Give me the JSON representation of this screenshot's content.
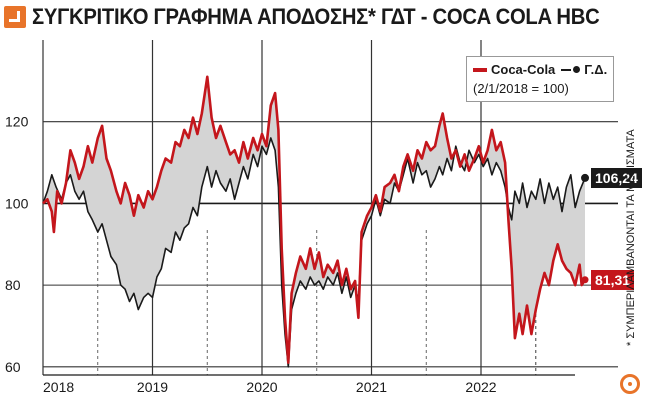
{
  "title": "ΣΥΓΚΡΙΤΙΚΟ ΓΡΑΦΗΜΑ ΑΠΟΔΟΣΗΣ* ΓΔΤ - COCA COLA HBC",
  "side_note": "* ΣΥΜΠΕΡΙΛΑΜΒΑΝΟΝΤΑΙ ΤΑ ΜΕΡΙΣΜΑΤΑ",
  "colors": {
    "coca_cola": "#c4161c",
    "gd": "#1a1a1a",
    "fill": "#d4d4d4",
    "accent": "#e8742a"
  },
  "chart_data": {
    "type": "line",
    "legend": {
      "series_a": "Coca-Cola",
      "series_b": "Γ.Δ.",
      "note": "(2/1/2018 = 100)",
      "placement": "top-right"
    },
    "x_ticks": [
      "2018",
      "2019",
      "2020",
      "2021",
      "2022"
    ],
    "y_ticks": [
      "60",
      "80",
      "100",
      "120"
    ],
    "ylim": [
      58,
      140
    ],
    "xlim": [
      2018.0,
      2022.95
    ],
    "grid": "horizontal",
    "end_labels": {
      "coca_cola": "81,31",
      "gd": "106,24"
    },
    "series": [
      {
        "name": "Coca-Cola",
        "points": [
          [
            2018.0,
            100
          ],
          [
            2018.04,
            101
          ],
          [
            2018.08,
            98
          ],
          [
            2018.1,
            93
          ],
          [
            2018.13,
            103
          ],
          [
            2018.17,
            100
          ],
          [
            2018.21,
            105
          ],
          [
            2018.25,
            113
          ],
          [
            2018.29,
            110
          ],
          [
            2018.33,
            106
          ],
          [
            2018.37,
            109
          ],
          [
            2018.41,
            114
          ],
          [
            2018.45,
            110
          ],
          [
            2018.5,
            116
          ],
          [
            2018.54,
            119
          ],
          [
            2018.58,
            111
          ],
          [
            2018.62,
            108
          ],
          [
            2018.67,
            103
          ],
          [
            2018.71,
            100
          ],
          [
            2018.75,
            105
          ],
          [
            2018.79,
            102
          ],
          [
            2018.83,
            97
          ],
          [
            2018.87,
            102
          ],
          [
            2018.92,
            99
          ],
          [
            2018.96,
            103
          ],
          [
            2019.0,
            101
          ],
          [
            2019.04,
            104
          ],
          [
            2019.08,
            108
          ],
          [
            2019.12,
            111
          ],
          [
            2019.17,
            110
          ],
          [
            2019.21,
            115
          ],
          [
            2019.25,
            114
          ],
          [
            2019.29,
            118
          ],
          [
            2019.33,
            116
          ],
          [
            2019.37,
            121
          ],
          [
            2019.41,
            117
          ],
          [
            2019.45,
            122
          ],
          [
            2019.5,
            131
          ],
          [
            2019.54,
            121
          ],
          [
            2019.58,
            116
          ],
          [
            2019.62,
            119
          ],
          [
            2019.67,
            115
          ],
          [
            2019.71,
            112
          ],
          [
            2019.75,
            113
          ],
          [
            2019.79,
            110
          ],
          [
            2019.83,
            115
          ],
          [
            2019.87,
            111
          ],
          [
            2019.92,
            116
          ],
          [
            2019.96,
            113
          ],
          [
            2020.0,
            117
          ],
          [
            2020.04,
            114
          ],
          [
            2020.08,
            124
          ],
          [
            2020.12,
            127
          ],
          [
            2020.15,
            118
          ],
          [
            2020.18,
            89
          ],
          [
            2020.21,
            72
          ],
          [
            2020.24,
            61
          ],
          [
            2020.27,
            78
          ],
          [
            2020.31,
            83
          ],
          [
            2020.35,
            87
          ],
          [
            2020.4,
            84
          ],
          [
            2020.44,
            89
          ],
          [
            2020.48,
            84
          ],
          [
            2020.52,
            88
          ],
          [
            2020.56,
            82
          ],
          [
            2020.6,
            85
          ],
          [
            2020.65,
            83
          ],
          [
            2020.69,
            86
          ],
          [
            2020.73,
            80
          ],
          [
            2020.77,
            84
          ],
          [
            2020.81,
            79
          ],
          [
            2020.85,
            81
          ],
          [
            2020.88,
            72
          ],
          [
            2020.91,
            93
          ],
          [
            2020.96,
            97
          ],
          [
            2021.0,
            99
          ],
          [
            2021.04,
            102
          ],
          [
            2021.08,
            98
          ],
          [
            2021.12,
            104
          ],
          [
            2021.17,
            105
          ],
          [
            2021.21,
            107
          ],
          [
            2021.25,
            103
          ],
          [
            2021.29,
            109
          ],
          [
            2021.33,
            112
          ],
          [
            2021.38,
            108
          ],
          [
            2021.42,
            113
          ],
          [
            2021.46,
            111
          ],
          [
            2021.5,
            115
          ],
          [
            2021.54,
            113
          ],
          [
            2021.58,
            114
          ],
          [
            2021.62,
            119
          ],
          [
            2021.65,
            122
          ],
          [
            2021.69,
            116
          ],
          [
            2021.73,
            111
          ],
          [
            2021.77,
            113
          ],
          [
            2021.81,
            109
          ],
          [
            2021.85,
            112
          ],
          [
            2021.89,
            108
          ],
          [
            2021.94,
            111
          ],
          [
            2021.98,
            114
          ],
          [
            2022.02,
            110
          ],
          [
            2022.06,
            113
          ],
          [
            2022.1,
            118
          ],
          [
            2022.14,
            113
          ],
          [
            2022.18,
            115
          ],
          [
            2022.22,
            110
          ],
          [
            2022.25,
            96
          ],
          [
            2022.28,
            84
          ],
          [
            2022.31,
            67
          ],
          [
            2022.35,
            73
          ],
          [
            2022.38,
            68
          ],
          [
            2022.42,
            75
          ],
          [
            2022.46,
            68
          ],
          [
            2022.5,
            74
          ],
          [
            2022.54,
            79
          ],
          [
            2022.58,
            83
          ],
          [
            2022.62,
            80
          ],
          [
            2022.66,
            86
          ],
          [
            2022.7,
            90
          ],
          [
            2022.74,
            86
          ],
          [
            2022.78,
            84
          ],
          [
            2022.82,
            83
          ],
          [
            2022.86,
            80
          ],
          [
            2022.9,
            85
          ],
          [
            2022.92,
            80
          ],
          [
            2022.95,
            81.31
          ]
        ]
      },
      {
        "name": "Γ.Δ.",
        "points": [
          [
            2018.0,
            100
          ],
          [
            2018.04,
            103
          ],
          [
            2018.08,
            107
          ],
          [
            2018.12,
            104
          ],
          [
            2018.17,
            101
          ],
          [
            2018.21,
            105
          ],
          [
            2018.25,
            107
          ],
          [
            2018.29,
            103
          ],
          [
            2018.33,
            101
          ],
          [
            2018.37,
            103
          ],
          [
            2018.41,
            98
          ],
          [
            2018.45,
            96
          ],
          [
            2018.5,
            93
          ],
          [
            2018.54,
            95
          ],
          [
            2018.58,
            91
          ],
          [
            2018.62,
            87
          ],
          [
            2018.67,
            85
          ],
          [
            2018.71,
            80
          ],
          [
            2018.75,
            79
          ],
          [
            2018.79,
            76
          ],
          [
            2018.83,
            78
          ],
          [
            2018.87,
            74
          ],
          [
            2018.92,
            77
          ],
          [
            2018.96,
            78
          ],
          [
            2019.0,
            77
          ],
          [
            2019.04,
            82
          ],
          [
            2019.08,
            84
          ],
          [
            2019.12,
            89
          ],
          [
            2019.17,
            88
          ],
          [
            2019.21,
            93
          ],
          [
            2019.25,
            91
          ],
          [
            2019.29,
            94
          ],
          [
            2019.33,
            95
          ],
          [
            2019.37,
            99
          ],
          [
            2019.41,
            97
          ],
          [
            2019.45,
            104
          ],
          [
            2019.5,
            109
          ],
          [
            2019.54,
            104
          ],
          [
            2019.58,
            108
          ],
          [
            2019.62,
            105
          ],
          [
            2019.67,
            103
          ],
          [
            2019.71,
            106
          ],
          [
            2019.75,
            101
          ],
          [
            2019.79,
            105
          ],
          [
            2019.83,
            109
          ],
          [
            2019.87,
            106
          ],
          [
            2019.92,
            112
          ],
          [
            2019.96,
            109
          ],
          [
            2020.0,
            114
          ],
          [
            2020.04,
            112
          ],
          [
            2020.08,
            116
          ],
          [
            2020.12,
            113
          ],
          [
            2020.15,
            104
          ],
          [
            2020.18,
            80
          ],
          [
            2020.21,
            68
          ],
          [
            2020.24,
            60
          ],
          [
            2020.27,
            74
          ],
          [
            2020.31,
            78
          ],
          [
            2020.35,
            81
          ],
          [
            2020.4,
            79
          ],
          [
            2020.44,
            82
          ],
          [
            2020.48,
            80
          ],
          [
            2020.52,
            81
          ],
          [
            2020.56,
            79
          ],
          [
            2020.6,
            82
          ],
          [
            2020.65,
            80
          ],
          [
            2020.69,
            83
          ],
          [
            2020.73,
            78
          ],
          [
            2020.77,
            82
          ],
          [
            2020.81,
            77
          ],
          [
            2020.85,
            80
          ],
          [
            2020.88,
            76
          ],
          [
            2020.91,
            91
          ],
          [
            2020.96,
            95
          ],
          [
            2021.0,
            97
          ],
          [
            2021.04,
            101
          ],
          [
            2021.08,
            97
          ],
          [
            2021.12,
            101
          ],
          [
            2021.17,
            100
          ],
          [
            2021.21,
            105
          ],
          [
            2021.25,
            103
          ],
          [
            2021.29,
            107
          ],
          [
            2021.33,
            111
          ],
          [
            2021.38,
            105
          ],
          [
            2021.42,
            110
          ],
          [
            2021.46,
            107
          ],
          [
            2021.5,
            108
          ],
          [
            2021.54,
            104
          ],
          [
            2021.58,
            106
          ],
          [
            2021.62,
            109
          ],
          [
            2021.65,
            107
          ],
          [
            2021.69,
            111
          ],
          [
            2021.73,
            108
          ],
          [
            2021.77,
            114
          ],
          [
            2021.81,
            110
          ],
          [
            2021.85,
            108
          ],
          [
            2021.89,
            113
          ],
          [
            2021.94,
            110
          ],
          [
            2021.98,
            112
          ],
          [
            2022.02,
            109
          ],
          [
            2022.06,
            111
          ],
          [
            2022.1,
            107
          ],
          [
            2022.14,
            110
          ],
          [
            2022.18,
            108
          ],
          [
            2022.22,
            104
          ],
          [
            2022.25,
            99
          ],
          [
            2022.28,
            96
          ],
          [
            2022.31,
            103
          ],
          [
            2022.35,
            100
          ],
          [
            2022.38,
            105
          ],
          [
            2022.42,
            99
          ],
          [
            2022.46,
            103
          ],
          [
            2022.5,
            101
          ],
          [
            2022.54,
            106
          ],
          [
            2022.58,
            100
          ],
          [
            2022.62,
            105
          ],
          [
            2022.66,
            101
          ],
          [
            2022.7,
            104
          ],
          [
            2022.74,
            98
          ],
          [
            2022.78,
            104
          ],
          [
            2022.82,
            107
          ],
          [
            2022.86,
            99
          ],
          [
            2022.9,
            103
          ],
          [
            2022.95,
            106.24
          ]
        ]
      }
    ]
  }
}
